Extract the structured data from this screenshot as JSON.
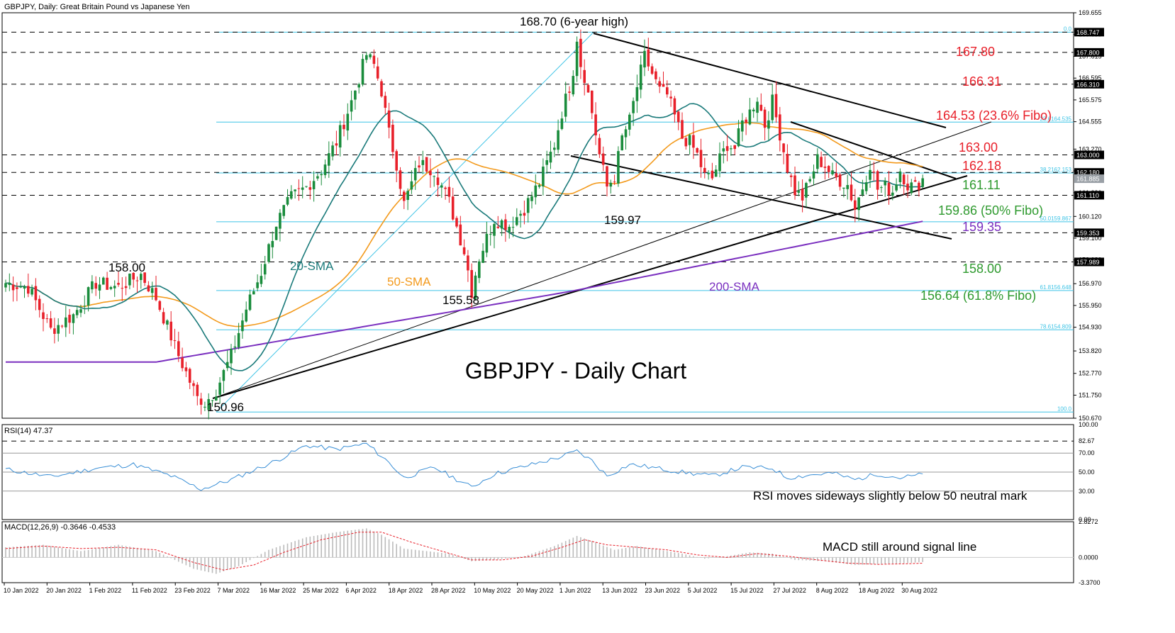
{
  "header": {
    "title": "GBPJPY, Daily:  Great Britain Pound vs Japanese Yen"
  },
  "main": {
    "watermark": "GBPJPY - Daily Chart",
    "y_ticks": [
      "169.655",
      "168.635",
      "167.615",
      "166.595",
      "165.575",
      "164.555",
      "163.270",
      "162.250",
      "161.230",
      "160.120",
      "159.100",
      "158.080",
      "156.970",
      "155.950",
      "154.930",
      "153.820",
      "152.770",
      "151.750",
      "150.670"
    ],
    "fibo_labels": [
      {
        "text": "0.0",
        "price": 168.747
      },
      {
        "text": "23.6164.535",
        "price": 164.535
      },
      {
        "text": "38.2162.153",
        "price": 162.153
      },
      {
        "text": "50.0159.867",
        "price": 159.867
      },
      {
        "text": "61.8156.648",
        "price": 156.648
      },
      {
        "text": "78.6154.809",
        "price": 154.809
      },
      {
        "text": "100.0",
        "price": 150.96
      }
    ],
    "price_tags": [
      {
        "text": "168.747",
        "price": 168.747
      },
      {
        "text": "167.800",
        "price": 167.8
      },
      {
        "text": "166.310",
        "price": 166.31
      },
      {
        "text": "163.000",
        "price": 163.0
      },
      {
        "text": "162.180",
        "price": 162.18
      },
      {
        "text": "161.885",
        "price": 161.885,
        "dark": true
      },
      {
        "text": "161.110",
        "price": 161.11
      },
      {
        "text": "159.353",
        "price": 159.353
      },
      {
        "text": "157.989",
        "price": 157.989
      }
    ],
    "annotations": [
      {
        "text": "168.70 (6-year high)",
        "color": "#000000"
      },
      {
        "text": "167.80",
        "color": "#e8202a"
      },
      {
        "text": "166.31",
        "color": "#e8202a"
      },
      {
        "text": "164.53 (23.6% Fibo)",
        "color": "#e8202a"
      },
      {
        "text": "163.00",
        "color": "#e8202a"
      },
      {
        "text": "162.18",
        "color": "#e8202a"
      },
      {
        "text": "161.11",
        "color": "#2f9a2f"
      },
      {
        "text": "159.86 (50% Fibo)",
        "color": "#2f9a2f"
      },
      {
        "text": "159.35",
        "color": "#7a2fbf"
      },
      {
        "text": "158.00",
        "color": "#2f9a2f"
      },
      {
        "text": "156.64 (61.8% Fibo)",
        "color": "#2f9a2f"
      },
      {
        "text": "158.00",
        "color": "#000000"
      },
      {
        "text": "155.58",
        "color": "#000000"
      },
      {
        "text": "159.97",
        "color": "#000000"
      },
      {
        "text": "150.96",
        "color": "#000000"
      },
      {
        "text": "20-SMA",
        "color": "#1a7a7a"
      },
      {
        "text": "50-SMA",
        "color": "#f39a1c"
      },
      {
        "text": "200-SMA",
        "color": "#7a2fbf"
      }
    ]
  },
  "rsi": {
    "title": "RSI(14) 47.37",
    "y_ticks": [
      "100.00",
      "82.67",
      "70.00",
      "50.00",
      "30.00",
      "0.00"
    ],
    "note": "RSI moves sideways slightly below 50 neutral mark"
  },
  "macd": {
    "title": "MACD(12,26,9) -0.3646 -0.4533",
    "y_ticks": [
      "2.8272",
      "0.0000",
      "-3.3700"
    ],
    "note": "MACD still around signal line"
  },
  "x_axis": {
    "labels": [
      "10 Jan 2022",
      "20 Jan 2022",
      "1 Feb 2022",
      "11 Feb 2022",
      "23 Feb 2022",
      "7 Mar 2022",
      "16 Mar 2022",
      "25 Mar 2022",
      "6 Apr 2022",
      "18 Apr 2022",
      "28 Apr 2022",
      "10 May 2022",
      "20 May 2022",
      "1 Jun 2022",
      "13 Jun 2022",
      "23 Jun 2022",
      "5 Jul 2022",
      "15 Jul 2022",
      "27 Jul 2022",
      "8 Aug 2022",
      "18 Aug 2022",
      "30 Aug 2022"
    ]
  },
  "colors": {
    "bull": "#1a8c3c",
    "bear": "#e8202a",
    "sma20": "#1a7a7a",
    "sma50": "#f39a1c",
    "sma200": "#7a2fbf",
    "fibo": "#3fc4e6",
    "rsi": "#3a8fd6",
    "macd_signal": "#e8202a",
    "macd_hist": "#bbbbbb"
  },
  "chart_data": {
    "type": "candlestick",
    "title": "GBPJPY, Daily:  Great Britain Pound vs Japanese Yen",
    "ylim": [
      150.67,
      169.655
    ],
    "key_levels": [
      168.7,
      167.8,
      166.31,
      164.53,
      163.0,
      162.18,
      161.11,
      159.86,
      159.35,
      158.0,
      156.64,
      155.58,
      159.97,
      150.96
    ],
    "swing_points": [
      {
        "date": "7 Mar 2022",
        "price": 150.96
      },
      {
        "date": "11 Feb 2022",
        "price": 158.0
      },
      {
        "date": "10 May 2022",
        "price": 155.58
      },
      {
        "date": "9 Jun 2022",
        "price": 168.7
      },
      {
        "date": "13 Jun 2022",
        "price": 159.97
      }
    ],
    "close_anchors": [
      [
        0,
        157.0
      ],
      [
        6,
        156.8
      ],
      [
        12,
        154.8
      ],
      [
        18,
        155.5
      ],
      [
        24,
        157.0
      ],
      [
        30,
        156.8
      ],
      [
        36,
        157.4
      ],
      [
        40,
        156.3
      ],
      [
        46,
        153.6
      ],
      [
        50,
        152.0
      ],
      [
        52,
        151.2
      ],
      [
        56,
        152.0
      ],
      [
        60,
        153.6
      ],
      [
        64,
        155.8
      ],
      [
        68,
        157.5
      ],
      [
        72,
        159.8
      ],
      [
        76,
        161.0
      ],
      [
        80,
        161.5
      ],
      [
        84,
        162.3
      ],
      [
        88,
        163.6
      ],
      [
        92,
        165.5
      ],
      [
        96,
        167.7
      ],
      [
        98,
        167.2
      ],
      [
        100,
        166.0
      ],
      [
        102,
        164.0
      ],
      [
        104,
        162.6
      ],
      [
        106,
        160.7
      ],
      [
        110,
        162.6
      ],
      [
        114,
        162.3
      ],
      [
        118,
        160.8
      ],
      [
        122,
        158.5
      ],
      [
        124,
        156.7
      ],
      [
        126,
        158.2
      ],
      [
        130,
        160.0
      ],
      [
        134,
        159.7
      ],
      [
        138,
        160.5
      ],
      [
        142,
        161.7
      ],
      [
        146,
        163.5
      ],
      [
        148,
        165.0
      ],
      [
        150,
        166.2
      ],
      [
        152,
        167.8
      ],
      [
        154,
        166.7
      ],
      [
        156,
        165.0
      ],
      [
        158,
        163.0
      ],
      [
        160,
        161.5
      ],
      [
        162,
        162.0
      ],
      [
        164,
        163.8
      ],
      [
        166,
        164.6
      ],
      [
        168,
        166.2
      ],
      [
        170,
        167.6
      ],
      [
        172,
        166.8
      ],
      [
        174,
        166.0
      ],
      [
        176,
        165.8
      ],
      [
        178,
        164.8
      ],
      [
        180,
        163.8
      ],
      [
        182,
        163.6
      ],
      [
        184,
        163.0
      ],
      [
        186,
        162.0
      ],
      [
        188,
        161.9
      ],
      [
        190,
        162.8
      ],
      [
        192,
        163.5
      ],
      [
        194,
        163.3
      ],
      [
        196,
        164.5
      ],
      [
        198,
        165.0
      ],
      [
        200,
        165.7
      ],
      [
        202,
        164.4
      ],
      [
        204,
        165.5
      ],
      [
        206,
        164.0
      ],
      [
        208,
        162.4
      ],
      [
        210,
        161.3
      ],
      [
        212,
        161.0
      ],
      [
        214,
        161.8
      ],
      [
        216,
        162.8
      ],
      [
        218,
        162.5
      ],
      [
        220,
        162.0
      ],
      [
        222,
        161.8
      ],
      [
        224,
        161.6
      ],
      [
        226,
        160.5
      ],
      [
        228,
        161.5
      ],
      [
        230,
        162.6
      ],
      [
        232,
        161.4
      ],
      [
        234,
        161.5
      ],
      [
        236,
        161.3
      ],
      [
        238,
        162.3
      ],
      [
        240,
        161.6
      ],
      [
        242,
        161.5
      ],
      [
        244,
        161.88
      ]
    ],
    "rsi_anchors": [
      [
        0,
        53
      ],
      [
        12,
        45
      ],
      [
        24,
        54
      ],
      [
        34,
        58
      ],
      [
        44,
        46
      ],
      [
        52,
        32
      ],
      [
        60,
        42
      ],
      [
        72,
        62
      ],
      [
        80,
        78
      ],
      [
        88,
        74
      ],
      [
        96,
        80
      ],
      [
        102,
        60
      ],
      [
        106,
        44
      ],
      [
        114,
        55
      ],
      [
        124,
        34
      ],
      [
        130,
        48
      ],
      [
        138,
        56
      ],
      [
        146,
        64
      ],
      [
        152,
        72
      ],
      [
        156,
        62
      ],
      [
        160,
        46
      ],
      [
        166,
        58
      ],
      [
        170,
        56
      ],
      [
        180,
        50
      ],
      [
        188,
        46
      ],
      [
        196,
        55
      ],
      [
        204,
        54
      ],
      [
        208,
        44
      ],
      [
        214,
        47
      ],
      [
        220,
        49
      ],
      [
        226,
        42
      ],
      [
        232,
        48
      ],
      [
        238,
        44
      ],
      [
        244,
        47.37
      ]
    ],
    "macd_anchors": [
      [
        0,
        0.8
      ],
      [
        10,
        1.0
      ],
      [
        20,
        0.5
      ],
      [
        30,
        1.0
      ],
      [
        40,
        0.5
      ],
      [
        50,
        -0.9
      ],
      [
        56,
        -1.3
      ],
      [
        62,
        -0.7
      ],
      [
        70,
        0.6
      ],
      [
        80,
        1.6
      ],
      [
        88,
        2.0
      ],
      [
        96,
        2.3
      ],
      [
        100,
        1.8
      ],
      [
        106,
        0.7
      ],
      [
        112,
        0.5
      ],
      [
        118,
        0.3
      ],
      [
        124,
        -0.3
      ],
      [
        130,
        -0.2
      ],
      [
        138,
        0.1
      ],
      [
        146,
        0.9
      ],
      [
        152,
        1.7
      ],
      [
        156,
        1.3
      ],
      [
        162,
        0.6
      ],
      [
        168,
        0.9
      ],
      [
        174,
        0.6
      ],
      [
        180,
        0.3
      ],
      [
        186,
        -0.1
      ],
      [
        192,
        0.1
      ],
      [
        198,
        0.4
      ],
      [
        204,
        0.3
      ],
      [
        210,
        -0.2
      ],
      [
        218,
        -0.3
      ],
      [
        226,
        -0.6
      ],
      [
        234,
        -0.5
      ],
      [
        240,
        -0.45
      ],
      [
        244,
        -0.3646
      ]
    ],
    "signal_anchors": [
      [
        0,
        0.7
      ],
      [
        10,
        0.9
      ],
      [
        20,
        0.7
      ],
      [
        30,
        0.8
      ],
      [
        40,
        0.6
      ],
      [
        50,
        -0.4
      ],
      [
        58,
        -1.0
      ],
      [
        66,
        -0.6
      ],
      [
        74,
        0.4
      ],
      [
        84,
        1.4
      ],
      [
        94,
        2.0
      ],
      [
        100,
        2.0
      ],
      [
        108,
        1.2
      ],
      [
        116,
        0.5
      ],
      [
        124,
        -0.2
      ],
      [
        132,
        -0.2
      ],
      [
        140,
        0.1
      ],
      [
        148,
        0.8
      ],
      [
        154,
        1.4
      ],
      [
        160,
        1.0
      ],
      [
        168,
        0.8
      ],
      [
        176,
        0.6
      ],
      [
        184,
        0.2
      ],
      [
        192,
        0.0
      ],
      [
        200,
        0.3
      ],
      [
        208,
        0.1
      ],
      [
        216,
        -0.2
      ],
      [
        224,
        -0.45
      ],
      [
        232,
        -0.55
      ],
      [
        240,
        -0.5
      ],
      [
        244,
        -0.4533
      ]
    ]
  }
}
